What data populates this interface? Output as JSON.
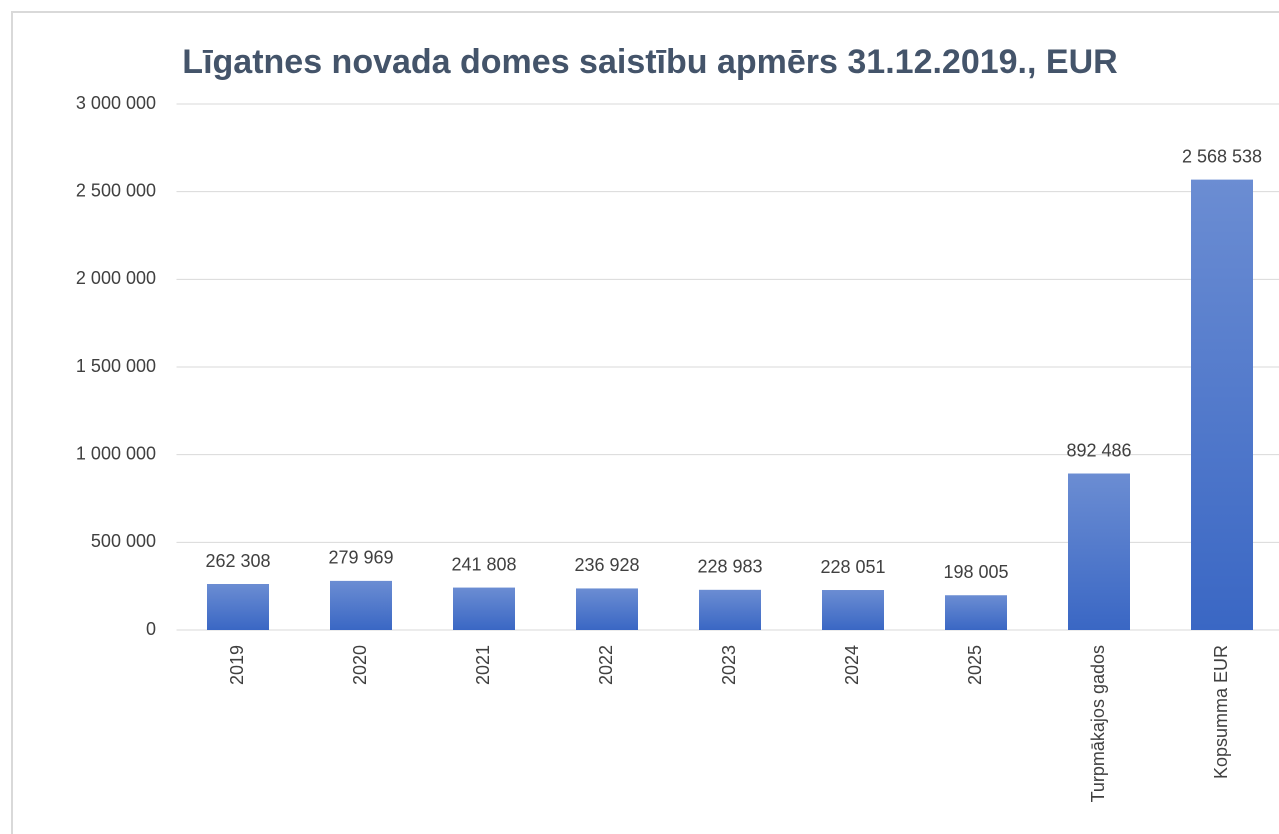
{
  "chart_data": {
    "type": "bar",
    "title": "Līgatnes novada domes saistību apmērs 31.12.2019., EUR",
    "categories": [
      "2019",
      "2020",
      "2021",
      "2022",
      "2023",
      "2024",
      "2025",
      "Turpmākajos gados",
      "Kopsumma EUR"
    ],
    "values": [
      262308,
      279969,
      241808,
      236928,
      228983,
      228051,
      198005,
      892486,
      2568538
    ],
    "value_labels": [
      "262 308",
      "279 969",
      "241 808",
      "236 928",
      "228 983",
      "228 051",
      "198 005",
      "892 486",
      "2 568 538"
    ],
    "color": "#3a67c4",
    "ylim": [
      0,
      3000000
    ],
    "yticks": [
      0,
      {
        "value": 500000,
        "label": "500 000"
      },
      {
        "value": 1000000,
        "label": "1 000 000"
      },
      {
        "value": 1500000,
        "label": "1 500 000"
      },
      {
        "value": 2000000,
        "label": "2 000 000"
      },
      {
        "value": 2500000,
        "label": "2 500 000"
      },
      {
        "value": 3000000,
        "label": "3 000 000"
      }
    ],
    "grid": true
  }
}
